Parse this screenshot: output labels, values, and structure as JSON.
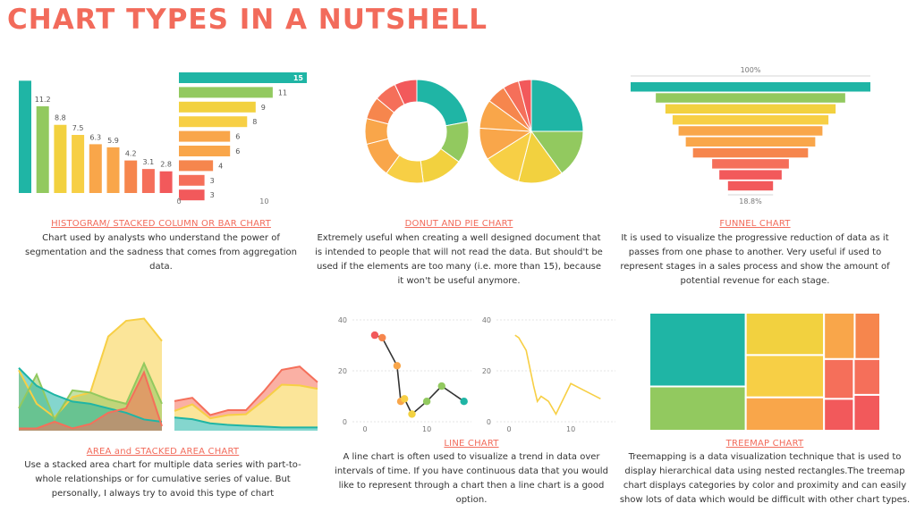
{
  "page": {
    "title": "CHART TYPES IN A NUTSHELL"
  },
  "colors": {
    "teal": "#1fb5a5",
    "green": "#92c95f",
    "yellow": "#f2d13f",
    "yellowlight": "#f7cf45",
    "orange": "#f9a64a",
    "orangered": "#f6864d",
    "coral": "#f56f5a",
    "red": "#f2595b",
    "title": "#f26b5b"
  },
  "sections": {
    "histogram": {
      "heading": "HISTOGRAM/ STACKED COLUMN OR BAR CHART",
      "text": "Chart used by analysts who understand the power of segmentation and the sadness that comes from aggregation data."
    },
    "donut": {
      "heading": "DONUT AND PIE CHART",
      "text": "Extremely useful when creating a well designed document that is intended to people that will not read the data. But should't be used if the elements are too many (i.e. more than 15), because it won't be useful anymore."
    },
    "funnel": {
      "heading": "FUNNEL CHART",
      "text": "It is used to visualize the progressive reduction of data as it passes from one phase to another. Very useful if used to represent stages in a sales process and show the amount of potential revenue for each stage."
    },
    "area": {
      "heading": "AREA and STACKED AREA CHART",
      "text": "Use a stacked area chart for multiple data series with part-to-whole relationships or for cumulative series of value. But personally, I always try to avoid this type of chart"
    },
    "line": {
      "heading": "LINE CHART",
      "text": "A line chart is often used to visualize a trend in data over intervals of time. If you have continuous data that you would like to represent through a chart then a line chart is a good option."
    },
    "treemap": {
      "heading": "TREEMAP CHART",
      "text": "Treemapping is a data visualization technique that is used to display hierarchical data using nested rectangles.The treemap chart displays categories by color and proximity and can easily show lots of data which would be difficult with other chart types."
    }
  },
  "chart_data": [
    {
      "type": "bar",
      "orientation": "vertical",
      "values": [
        14.5,
        11.2,
        8.8,
        7.5,
        6.3,
        5.9,
        4.2,
        3.1,
        2.8
      ],
      "labels": [
        "",
        "11.2",
        "8.8",
        "7.5",
        "6.3",
        "5.9",
        "4.2",
        "3.1",
        "2.8"
      ],
      "colors": [
        "#1fb5a5",
        "#92c95f",
        "#f2d13f",
        "#f7cf45",
        "#f9a64a",
        "#f9a64a",
        "#f6864d",
        "#f56f5a",
        "#f2595b"
      ]
    },
    {
      "type": "bar",
      "orientation": "horizontal",
      "values": [
        15,
        11,
        9,
        8,
        6,
        6,
        4,
        3,
        3
      ],
      "labels": [
        "15",
        "11",
        "9",
        "8",
        "6",
        "6",
        "4",
        "3",
        "3"
      ],
      "xticks": [
        "0",
        "10"
      ],
      "xlim": [
        0,
        15
      ],
      "colors": [
        "#1fb5a5",
        "#92c95f",
        "#f2d13f",
        "#f7cf45",
        "#f9a64a",
        "#f9a64a",
        "#f6864d",
        "#f56f5a",
        "#f2595b"
      ]
    },
    {
      "type": "pie",
      "variant": "donut",
      "values": [
        22,
        13,
        13,
        12,
        11,
        8,
        7,
        7,
        7
      ],
      "colors": [
        "#1fb5a5",
        "#92c95f",
        "#f2d13f",
        "#f7cf45",
        "#f9a64a",
        "#f9a64a",
        "#f6864d",
        "#f56f5a",
        "#f2595b"
      ]
    },
    {
      "type": "pie",
      "values": [
        25,
        15,
        14,
        12,
        10,
        9,
        6,
        5,
        4
      ],
      "colors": [
        "#1fb5a5",
        "#92c95f",
        "#f2d13f",
        "#f7cf45",
        "#f9a64a",
        "#f9a64a",
        "#f6864d",
        "#f56f5a",
        "#f2595b"
      ]
    },
    {
      "type": "bar",
      "variant": "funnel",
      "values": [
        100,
        79,
        71,
        65,
        60,
        54,
        48,
        32,
        26,
        18.8
      ],
      "top_label": "100%",
      "bottom_label": "18.8%",
      "colors": [
        "#1fb5a5",
        "#92c95f",
        "#f2d13f",
        "#f7cf45",
        "#f9a64a",
        "#f9a64a",
        "#f6864d",
        "#f56f5a",
        "#f2595b",
        "#f2595b"
      ]
    },
    {
      "type": "area",
      "series": [
        {
          "values": [
            27,
            12,
            6,
            15,
            17,
            42,
            49,
            50,
            40
          ],
          "color": "#f7cf45"
        },
        {
          "values": [
            10,
            25,
            5,
            18,
            17,
            14,
            12,
            30,
            12
          ],
          "color": "#92c95f"
        },
        {
          "values": [
            28,
            20,
            16,
            13,
            12,
            10,
            8,
            5,
            4
          ],
          "color": "#1fb5a5"
        },
        {
          "values": [
            1,
            1,
            4,
            1,
            3,
            8,
            10,
            26,
            2
          ],
          "color": "#f56f5a"
        }
      ]
    },
    {
      "type": "area",
      "variant": "stacked",
      "series": [
        {
          "values": [
            16,
            14,
            9,
            7,
            6,
            5,
            4,
            4,
            4
          ],
          "color": "#1fb5a5"
        },
        {
          "values": [
            8,
            18,
            6,
            12,
            14,
            32,
            52,
            51,
            47
          ],
          "color": "#f7cf45"
        },
        {
          "values": [
            12,
            8,
            4,
            6,
            5,
            11,
            18,
            23,
            8
          ],
          "color": "#f56f5a"
        }
      ]
    },
    {
      "type": "line",
      "x": [
        3,
        4,
        6,
        6.5,
        7,
        8,
        10,
        12,
        15
      ],
      "y": [
        34,
        33,
        22,
        8,
        9,
        3,
        8,
        14,
        8
      ],
      "point_colors": [
        "#f2595b",
        "#f6864d",
        "#f9a64a",
        "#f9a64a",
        "#f7cf45",
        "#f2d13f",
        "#92c95f",
        "#92c95f",
        "#1fb5a5"
      ],
      "yticks": [
        "0",
        "20",
        "40"
      ],
      "xticks": [
        "0",
        "10"
      ],
      "ylim": [
        0,
        40
      ],
      "xlim": [
        0,
        16
      ],
      "line_color": "#333333"
    },
    {
      "type": "line",
      "x": [
        2.5,
        3,
        4,
        5,
        5.5,
        6,
        7,
        8,
        10,
        12,
        14
      ],
      "y": [
        34,
        33,
        28,
        14,
        8,
        10,
        8,
        3,
        15,
        12,
        9
      ],
      "yticks": [
        "0",
        "20",
        "40"
      ],
      "xticks": [
        "0",
        "10"
      ],
      "ylim": [
        0,
        40
      ],
      "xlim": [
        0,
        16
      ],
      "line_color": "#f7cf45"
    },
    {
      "type": "heatmap",
      "variant": "treemap",
      "values": [
        30,
        18,
        14,
        14,
        11,
        6,
        5,
        5,
        4,
        4,
        4
      ],
      "colors": [
        "#1fb5a5",
        "#92c95f",
        "#f2d13f",
        "#f7cf45",
        "#f9a64a",
        "#f9a64a",
        "#f6864d",
        "#f56f5a",
        "#f2595b",
        "#f56f5a",
        "#f2595b"
      ]
    }
  ]
}
